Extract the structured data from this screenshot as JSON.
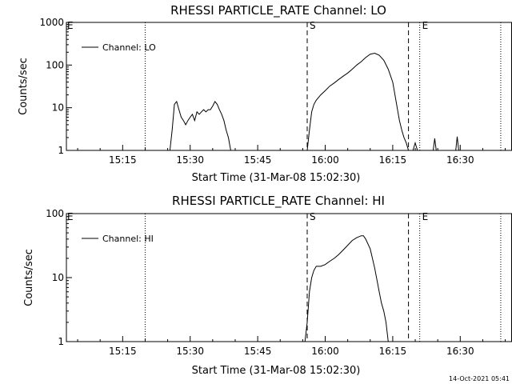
{
  "footer_timestamp": "14-Oct-2021 05:41",
  "chart_data": [
    {
      "type": "line",
      "title": "RHESSI PARTICLE_RATE Channel: LO",
      "xlabel": "Start Time (31-Mar-08 15:02:30)",
      "ylabel": "Counts/sec",
      "yscale": "log",
      "ylim": [
        1,
        1000
      ],
      "y_ticks": [
        1,
        10,
        100,
        1000
      ],
      "y_tick_labels": [
        "1",
        "10",
        "100",
        "1000"
      ],
      "xlim": [
        "15:02:30",
        "16:41:30"
      ],
      "x_ticks": [
        "15:15",
        "15:30",
        "15:45",
        "16:00",
        "16:15",
        "16:30"
      ],
      "legend": {
        "position": "top-left",
        "entries": [
          "Channel: LO"
        ]
      },
      "vlines": [
        {
          "time": "15:20:00",
          "style": "dotted"
        },
        {
          "time": "15:56:00",
          "style": "dashed",
          "label": "S"
        },
        {
          "time": "16:18:30",
          "style": "dashed"
        },
        {
          "time": "16:21:00",
          "style": "dotted",
          "label": "E"
        },
        {
          "time": "16:39:00",
          "style": "dotted"
        }
      ],
      "edge_labels": [
        "E"
      ],
      "series": [
        {
          "segments": [
            {
              "t": [
                "15:25:30",
                "15:26:00",
                "15:26:30",
                "15:27:00",
                "15:27:30",
                "15:28:00",
                "15:28:30",
                "15:29:00",
                "15:29:30",
                "15:30:00",
                "15:30:30",
                "15:31:00",
                "15:31:30",
                "15:32:00",
                "15:32:30",
                "15:33:00",
                "15:33:30",
                "15:34:00",
                "15:34:30",
                "15:35:00",
                "15:35:30",
                "15:36:00",
                "15:36:30",
                "15:37:00",
                "15:37:30",
                "15:38:00",
                "15:38:30",
                "15:39:00"
              ],
              "y": [
                1,
                3,
                12,
                14,
                9,
                6,
                5,
                4,
                5,
                6,
                7,
                5,
                8,
                7,
                8,
                9,
                8,
                9,
                9,
                11,
                14,
                12,
                9,
                7,
                5,
                3,
                2,
                1
              ]
            },
            {
              "t": [
                "15:56:00",
                "15:56:30",
                "15:57:00",
                "15:57:30",
                "15:58:00",
                "15:59:00",
                "16:00:00",
                "16:01:00",
                "16:02:00",
                "16:03:00",
                "16:04:00",
                "16:05:00",
                "16:06:00",
                "16:07:00",
                "16:08:00",
                "16:09:00",
                "16:10:00",
                "16:11:00",
                "16:12:00",
                "16:13:00",
                "16:14:00",
                "16:15:00",
                "16:15:30",
                "16:16:00",
                "16:16:30",
                "16:17:00",
                "16:17:30",
                "16:18:00",
                "16:18:30",
                "16:19:00"
              ],
              "y": [
                1,
                3,
                8,
                12,
                15,
                20,
                25,
                32,
                38,
                46,
                55,
                65,
                80,
                100,
                120,
                150,
                180,
                190,
                170,
                130,
                80,
                40,
                20,
                10,
                5,
                3,
                2,
                1.5,
                1,
                1
              ]
            },
            {
              "t": [
                "16:19:30",
                "16:20:00",
                "16:20:30"
              ],
              "y": [
                1,
                1.5,
                1
              ]
            },
            {
              "t": [
                "16:24:00",
                "16:24:20",
                "16:24:40"
              ],
              "y": [
                1,
                1.9,
                1
              ]
            },
            {
              "t": [
                "16:29:00",
                "16:29:20",
                "16:29:40"
              ],
              "y": [
                1,
                2.1,
                1
              ]
            }
          ]
        }
      ]
    },
    {
      "type": "line",
      "title": "RHESSI PARTICLE_RATE Channel: HI",
      "xlabel": "Start Time (31-Mar-08 15:02:30)",
      "ylabel": "Counts/sec",
      "yscale": "log",
      "ylim": [
        1,
        100
      ],
      "y_ticks": [
        1,
        10,
        100
      ],
      "y_tick_labels": [
        "1",
        "10",
        "100"
      ],
      "xlim": [
        "15:02:30",
        "16:41:30"
      ],
      "x_ticks": [
        "15:15",
        "15:30",
        "15:45",
        "16:00",
        "16:15",
        "16:30"
      ],
      "legend": {
        "position": "top-left",
        "entries": [
          "Channel: HI"
        ]
      },
      "vlines": [
        {
          "time": "15:20:00",
          "style": "dotted"
        },
        {
          "time": "15:56:00",
          "style": "dashed",
          "label": "S"
        },
        {
          "time": "16:18:30",
          "style": "dashed"
        },
        {
          "time": "16:21:00",
          "style": "dotted",
          "label": "E"
        },
        {
          "time": "16:39:00",
          "style": "dotted"
        }
      ],
      "edge_labels": [
        "E"
      ],
      "series": [
        {
          "segments": [
            {
              "t": [
                "15:55:30",
                "15:56:00",
                "15:56:30",
                "15:57:00",
                "15:57:30",
                "15:58:00",
                "15:59:00",
                "16:00:00",
                "16:01:00",
                "16:02:00",
                "16:03:00",
                "16:04:00",
                "16:05:00",
                "16:06:00",
                "16:07:00",
                "16:08:00",
                "16:08:30",
                "16:09:00",
                "16:10:00",
                "16:11:00",
                "16:12:00",
                "16:12:30",
                "16:13:00",
                "16:13:30",
                "16:14:00"
              ],
              "y": [
                1,
                2,
                6,
                10,
                13,
                15,
                15,
                16,
                18,
                20,
                23,
                27,
                32,
                38,
                42,
                45,
                45,
                40,
                28,
                14,
                6,
                4,
                3,
                2,
                1
              ]
            }
          ]
        }
      ]
    }
  ]
}
